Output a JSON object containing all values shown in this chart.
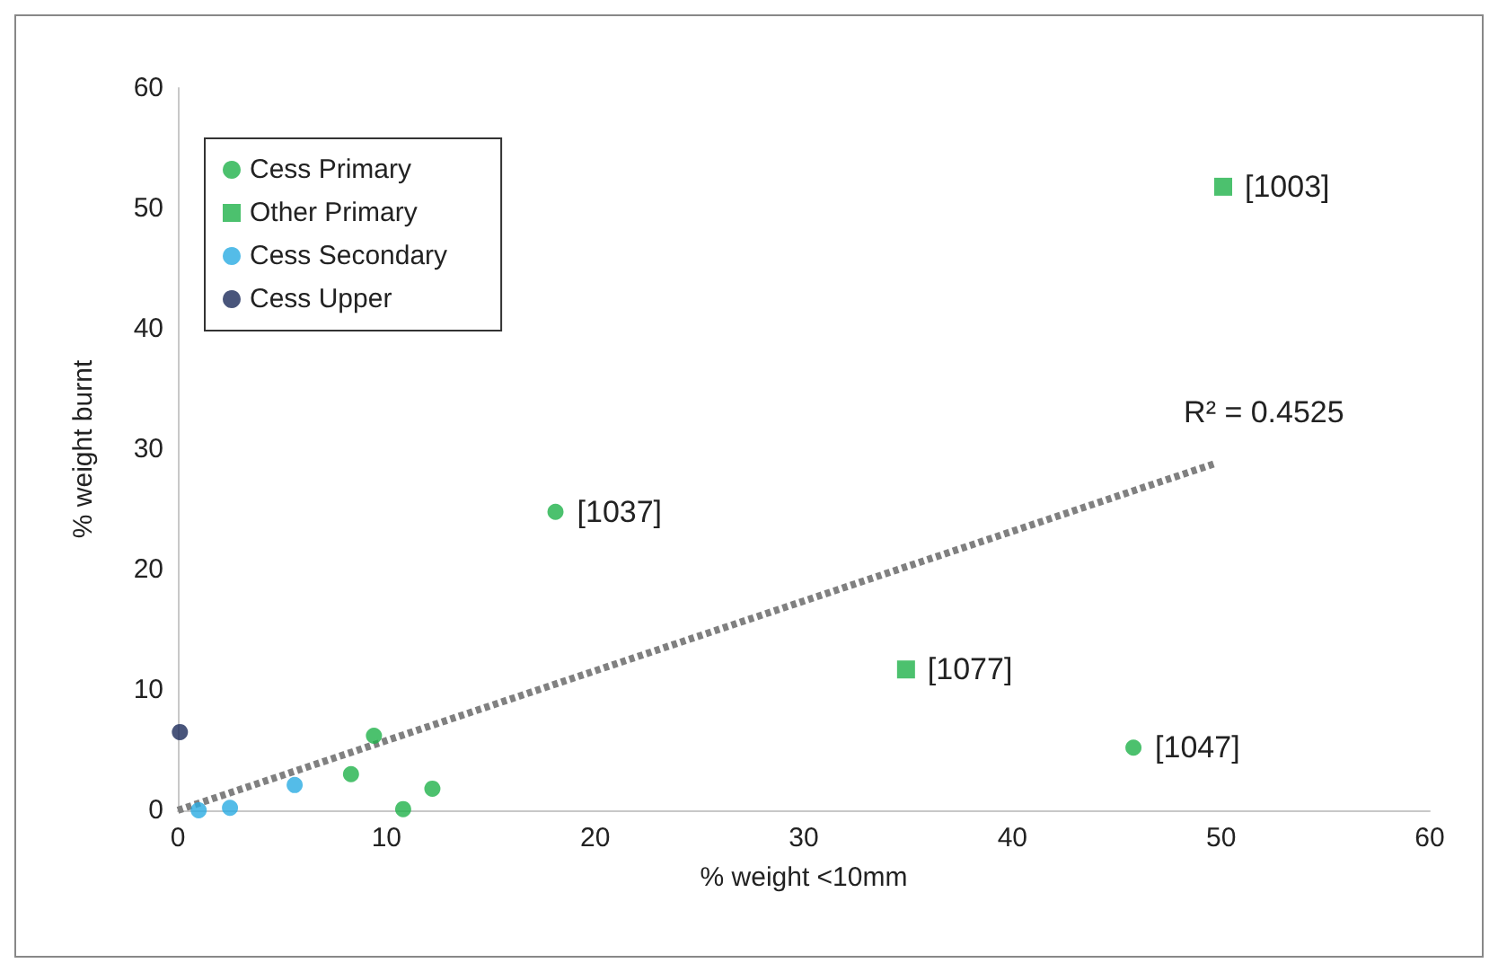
{
  "chart_data": {
    "type": "scatter",
    "xlabel": "% weight <10mm",
    "ylabel": "% weight burnt",
    "xlim": [
      0,
      60
    ],
    "xticks": [
      0,
      10,
      20,
      30,
      40,
      50,
      60
    ],
    "ylim": [
      0,
      60
    ],
    "yticks": [
      0,
      10,
      20,
      30,
      40,
      50,
      60
    ],
    "grid": false,
    "legend": "top left",
    "series": [
      {
        "name": "Cess Primary",
        "color": "#1fb24a",
        "marker": "circle",
        "x": [
          18.1,
          45.8,
          9.4,
          8.3,
          12.2,
          10.8
        ],
        "values": [
          24.8,
          5.2,
          6.2,
          3.0,
          1.8,
          0.1
        ]
      },
      {
        "name": "Other Primary",
        "color": "#1fb24a",
        "marker": "square",
        "x": [
          50.1,
          34.9
        ],
        "values": [
          51.8,
          11.7
        ]
      },
      {
        "name": "Cess Secondary",
        "color": "#29abe2",
        "marker": "circle",
        "x": [
          1.0,
          2.5,
          5.6
        ],
        "values": [
          0,
          0.2,
          2.1
        ]
      },
      {
        "name": "Cess Upper",
        "color": "#1b2a5a",
        "marker": "circle",
        "x": [
          0.1
        ],
        "values": [
          6.5
        ]
      },
      {
        "type": "line",
        "color": "#808080",
        "marker": "none",
        "line_style": "dotted",
        "x": [
          0,
          49.7
        ],
        "values": [
          0,
          28.8
        ]
      }
    ],
    "annotations": [
      {
        "text": "[1003]",
        "x": 50.1,
        "y": 51.8
      },
      {
        "text": "[1077]",
        "x": 34.9,
        "y": 11.7
      },
      {
        "text": "[1037]",
        "x": 18.1,
        "y": 24.8
      },
      {
        "text": "[1047]",
        "x": 45.8,
        "y": 5.2
      },
      {
        "text": "R² = 0.4525",
        "x": 49.7,
        "y": 28.8
      }
    ]
  }
}
